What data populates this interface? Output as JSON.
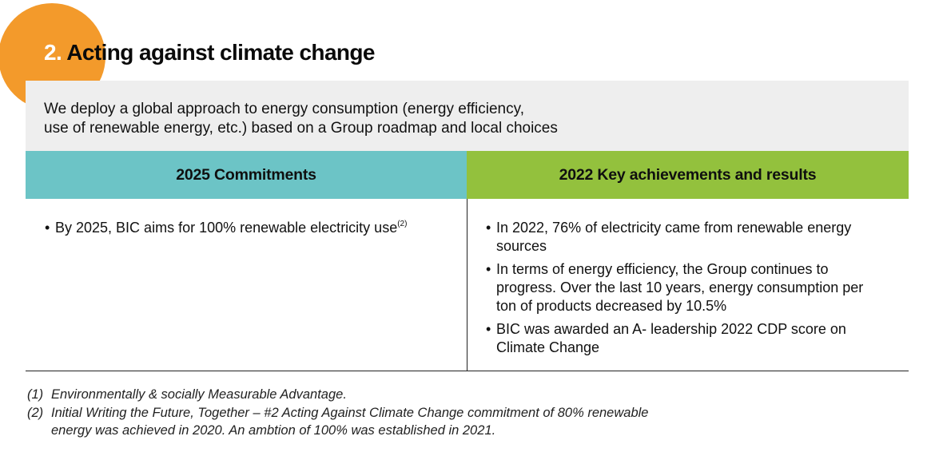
{
  "header": {
    "title_number": "2.",
    "title_text": "Acting against climate change"
  },
  "intro": {
    "line1": "We deploy a global approach to energy consumption (energy efficiency,",
    "line2": "use of renewable energy, etc.) based on a Group roadmap and local choices"
  },
  "columns": {
    "left": {
      "heading": "2025 Commitments",
      "items": [
        {
          "text": "By 2025, BIC aims for 100% renewable electricity use",
          "sup": "(2)"
        }
      ]
    },
    "right": {
      "heading": "2022 Key achievements and results",
      "items": [
        {
          "text": "In 2022, 76% of electricity came from renewable energy sources"
        },
        {
          "text": "In terms of energy efficiency, the Group continues to progress. Over the last 10 years, energy consumption per ton of products decreased by 10.5%"
        },
        {
          "text": "BIC was awarded an A- leadership 2022 CDP score on Climate Change"
        }
      ]
    }
  },
  "footnotes": [
    {
      "mark": "(1)",
      "text": "Environmentally & socially Measurable Advantage."
    },
    {
      "mark": "(2)",
      "text": "Initial Writing the Future, Together – #2 Acting Against Climate Change commitment of 80% renewable energy was achieved in 2020. An ambtion of 100% was established in 2021."
    }
  ],
  "colors": {
    "accent_orange": "#f39a2b",
    "teal_header": "#6cc4c6",
    "green_header": "#93c13d",
    "intro_background": "#eeeeee"
  }
}
